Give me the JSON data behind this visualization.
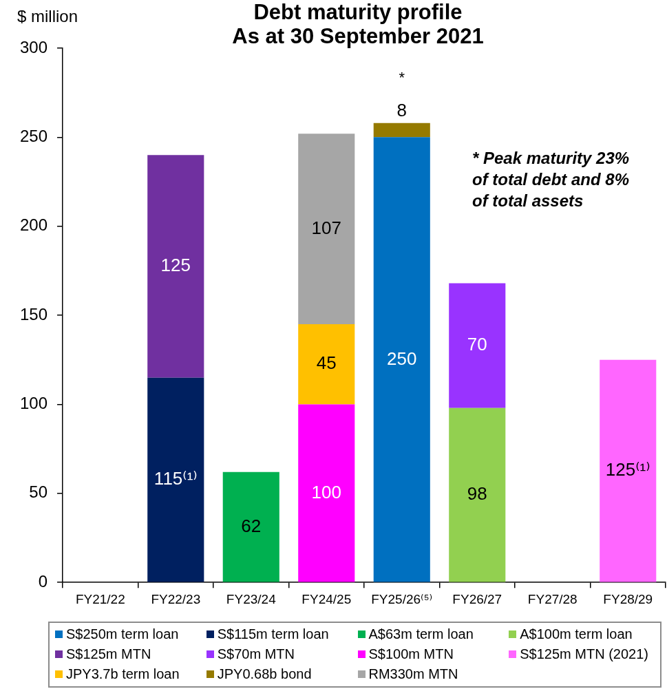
{
  "chart_data": {
    "type": "bar",
    "title": "Debt maturity profile\nAs at 30 September 2021",
    "ylabel": "$ million",
    "categories": [
      "FY21/22",
      "FY22/23",
      "FY23/24",
      "FY24/25",
      "FY25/26⁽⁵⁾",
      "FY26/27",
      "FY27/28",
      "FY28/29"
    ],
    "series": [
      {
        "name": "S$250m term loan",
        "color": "#0070c0",
        "values": [
          null,
          null,
          null,
          null,
          250,
          null,
          null,
          null
        ],
        "value_labels": [
          null,
          null,
          null,
          null,
          "250",
          null,
          null,
          null
        ]
      },
      {
        "name": "S$115m term loan",
        "color": "#002060",
        "values": [
          null,
          115,
          null,
          null,
          null,
          null,
          null,
          null
        ],
        "value_labels": [
          null,
          "115⁽¹⁾",
          null,
          null,
          null,
          null,
          null,
          null
        ]
      },
      {
        "name": "A$63m term loan",
        "color": "#00b050",
        "values": [
          null,
          null,
          62,
          null,
          null,
          null,
          null,
          null
        ],
        "value_labels": [
          null,
          null,
          "62",
          null,
          null,
          null,
          null,
          null
        ]
      },
      {
        "name": "A$100m term loan",
        "color": "#92d050",
        "values": [
          null,
          null,
          null,
          null,
          null,
          98,
          null,
          null
        ],
        "value_labels": [
          null,
          null,
          null,
          null,
          null,
          "98",
          null,
          null
        ]
      },
      {
        "name": "S$125m MTN",
        "color": "#7030a0",
        "values": [
          null,
          125,
          null,
          null,
          null,
          null,
          null,
          null
        ],
        "value_labels": [
          null,
          "125",
          null,
          null,
          null,
          null,
          null,
          null
        ]
      },
      {
        "name": "S$70m MTN",
        "color": "#9933ff",
        "values": [
          null,
          null,
          null,
          null,
          null,
          70,
          null,
          null
        ],
        "value_labels": [
          null,
          null,
          null,
          null,
          null,
          "70",
          null,
          null
        ]
      },
      {
        "name": "S$100m MTN",
        "color": "#ff00ff",
        "values": [
          null,
          null,
          null,
          100,
          null,
          null,
          null,
          null
        ],
        "value_labels": [
          null,
          null,
          null,
          "100",
          null,
          null,
          null,
          null
        ]
      },
      {
        "name": "S$125m MTN (2021)",
        "color": "#ff66ff",
        "values": [
          null,
          null,
          null,
          null,
          null,
          null,
          null,
          125
        ],
        "value_labels": [
          null,
          null,
          null,
          null,
          null,
          null,
          null,
          "125⁽¹⁾"
        ]
      },
      {
        "name": "JPY3.7b term loan",
        "color": "#ffc000",
        "values": [
          null,
          null,
          null,
          45,
          null,
          null,
          null,
          null
        ],
        "value_labels": [
          null,
          null,
          null,
          "45",
          null,
          null,
          null,
          null
        ]
      },
      {
        "name": "JPY0.68b bond",
        "color": "#957a00",
        "values": [
          null,
          null,
          null,
          null,
          8,
          null,
          null,
          null
        ],
        "value_labels": [
          null,
          null,
          null,
          null,
          "8",
          null,
          null,
          null
        ]
      },
      {
        "name": "RM330m MTN",
        "color": "#a6a6a6",
        "values": [
          null,
          null,
          null,
          107,
          null,
          null,
          null,
          null
        ],
        "value_labels": [
          null,
          null,
          null,
          "107",
          null,
          null,
          null,
          null
        ]
      }
    ],
    "stacked": true,
    "ylim": [
      0,
      300
    ],
    "yticks": [
      0,
      50,
      100,
      150,
      200,
      250,
      300
    ],
    "legend": "bottom",
    "annotations": [
      {
        "text": "*",
        "x": "FY25/26⁽⁵⁾",
        "y": 258
      },
      "* Peak maturity 23% of total debt and 8% of total assets"
    ]
  }
}
